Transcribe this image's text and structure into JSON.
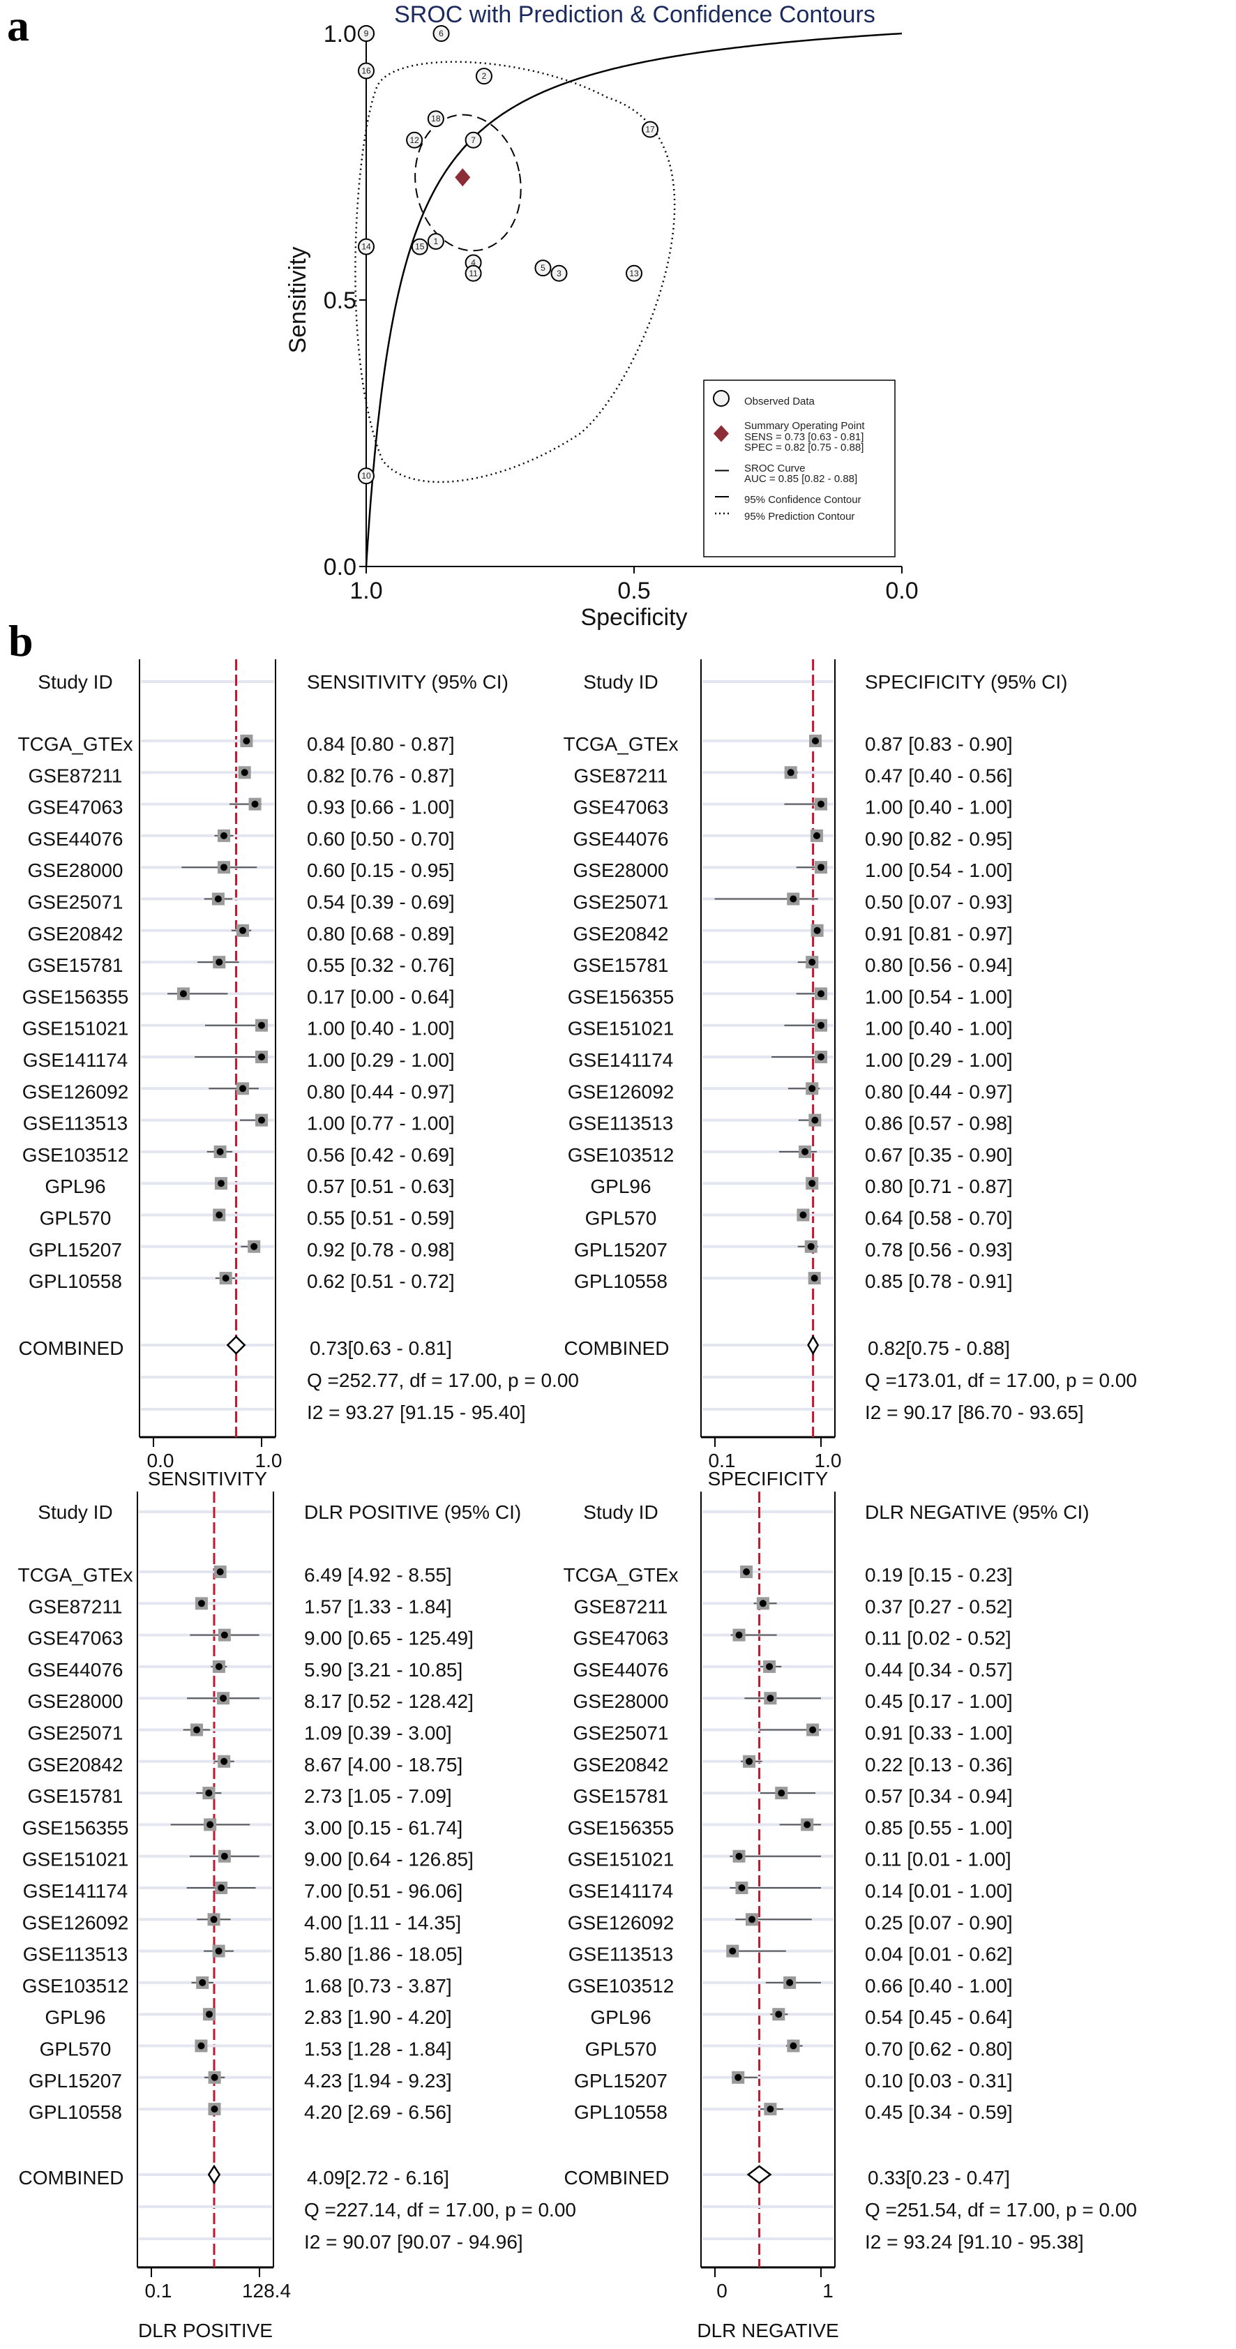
{
  "panel_labels": {
    "a": "a",
    "b": "b"
  },
  "chart_data": [
    {
      "id": "sroc",
      "type": "scatter",
      "title": "SROC with Prediction & Confidence Contours",
      "xlabel": "Specificity",
      "ylabel": "Sensitivity",
      "xlim": [
        1.0,
        0.0
      ],
      "ylim": [
        0.0,
        1.0
      ],
      "xticks": [
        "1.0",
        "0.5",
        "0.0"
      ],
      "yticks": [
        "0.0",
        "0.5",
        "1.0"
      ],
      "xtick_values": [
        1.0,
        0.5,
        0.0
      ],
      "ytick_values": [
        0.0,
        0.5,
        1.0
      ],
      "grid": false,
      "points": [
        {
          "label": "1",
          "spec": 0.87,
          "sens": 0.61
        },
        {
          "label": "2",
          "spec": 0.78,
          "sens": 0.92
        },
        {
          "label": "3",
          "spec": 0.64,
          "sens": 0.55
        },
        {
          "label": "4",
          "spec": 0.8,
          "sens": 0.57
        },
        {
          "label": "5",
          "spec": 0.67,
          "sens": 0.56
        },
        {
          "label": "6",
          "spec": 0.86,
          "sens": 1.0
        },
        {
          "label": "7",
          "spec": 0.8,
          "sens": 0.8
        },
        {
          "label": "8",
          "spec": 1.0,
          "sens": 1.0
        },
        {
          "label": "9",
          "spec": 1.0,
          "sens": 1.0
        },
        {
          "label": "10",
          "spec": 1.0,
          "sens": 0.17
        },
        {
          "label": "11",
          "spec": 0.8,
          "sens": 0.55
        },
        {
          "label": "12",
          "spec": 0.91,
          "sens": 0.8
        },
        {
          "label": "13",
          "spec": 0.5,
          "sens": 0.55
        },
        {
          "label": "14",
          "spec": 1.0,
          "sens": 0.6
        },
        {
          "label": "15",
          "spec": 0.9,
          "sens": 0.6
        },
        {
          "label": "16",
          "spec": 1.0,
          "sens": 0.93
        },
        {
          "label": "17",
          "spec": 0.47,
          "sens": 0.82
        },
        {
          "label": "18",
          "spec": 0.87,
          "sens": 0.84
        }
      ],
      "summary_point": {
        "spec": 0.82,
        "sens": 0.73
      },
      "summary_color": "#8b2c36",
      "auc": 0.85,
      "legend": {
        "placement": "bottom-right",
        "entries": [
          {
            "symbol": "circle",
            "lines": [
              "Observed Data"
            ]
          },
          {
            "symbol": "diamond",
            "lines": [
              "Summary Operating Point",
              "SENS = 0.73 [0.63 - 0.81]",
              "SPEC = 0.82 [0.75 - 0.88]"
            ]
          },
          {
            "symbol": "solid",
            "lines": [
              "SROC Curve",
              "AUC = 0.85 [0.82 - 0.88]"
            ]
          },
          {
            "symbol": "solid",
            "lines": [
              "95% Confidence Contour"
            ]
          },
          {
            "symbol": "dotted",
            "lines": [
              "95% Prediction Contour"
            ]
          }
        ]
      }
    },
    {
      "id": "forest-sensitivity",
      "type": "forest",
      "study_header": "Study ID",
      "value_header": "SENSITIVITY (95% CI)",
      "xlabel": "SENSITIVITY",
      "scale": "linear",
      "xlim": [
        0.0,
        1.0
      ],
      "xticks": [
        "0.0",
        "1.0"
      ],
      "pooled_line": 0.73,
      "studies": [
        {
          "id": "TCGA_GTEx",
          "est": 0.84,
          "lo": 0.8,
          "hi": 0.87,
          "text": "0.84 [0.80 - 0.87]"
        },
        {
          "id": "GSE87211",
          "est": 0.82,
          "lo": 0.76,
          "hi": 0.87,
          "text": "0.82 [0.76 - 0.87]"
        },
        {
          "id": "GSE47063",
          "est": 0.93,
          "lo": 0.66,
          "hi": 1.0,
          "text": "0.93 [0.66 - 1.00]"
        },
        {
          "id": "GSE44076",
          "est": 0.6,
          "lo": 0.5,
          "hi": 0.7,
          "text": "0.60 [0.50 - 0.70]"
        },
        {
          "id": "GSE28000",
          "est": 0.6,
          "lo": 0.15,
          "hi": 0.95,
          "text": "0.60 [0.15 - 0.95]"
        },
        {
          "id": "GSE25071",
          "est": 0.54,
          "lo": 0.39,
          "hi": 0.69,
          "text": "0.54 [0.39 - 0.69]"
        },
        {
          "id": "GSE20842",
          "est": 0.8,
          "lo": 0.68,
          "hi": 0.89,
          "text": "0.80 [0.68 - 0.89]"
        },
        {
          "id": "GSE15781",
          "est": 0.55,
          "lo": 0.32,
          "hi": 0.76,
          "text": "0.55 [0.32 - 0.76]"
        },
        {
          "id": "GSE156355",
          "est": 0.17,
          "lo": 0.0,
          "hi": 0.64,
          "text": "0.17 [0.00 - 0.64]"
        },
        {
          "id": "GSE151021",
          "est": 1.0,
          "lo": 0.4,
          "hi": 1.0,
          "text": "1.00 [0.40 - 1.00]"
        },
        {
          "id": "GSE141174",
          "est": 1.0,
          "lo": 0.29,
          "hi": 1.0,
          "text": "1.00 [0.29 - 1.00]"
        },
        {
          "id": "GSE126092",
          "est": 0.8,
          "lo": 0.44,
          "hi": 0.97,
          "text": "0.80 [0.44 - 0.97]"
        },
        {
          "id": "GSE113513",
          "est": 1.0,
          "lo": 0.77,
          "hi": 1.0,
          "text": "1.00 [0.77 - 1.00]"
        },
        {
          "id": "GSE103512",
          "est": 0.56,
          "lo": 0.42,
          "hi": 0.69,
          "text": "0.56 [0.42 - 0.69]"
        },
        {
          "id": "GPL96",
          "est": 0.57,
          "lo": 0.51,
          "hi": 0.63,
          "text": "0.57 [0.51 - 0.63]"
        },
        {
          "id": "GPL570",
          "est": 0.55,
          "lo": 0.51,
          "hi": 0.59,
          "text": "0.55 [0.51 - 0.59]"
        },
        {
          "id": "GPL15207",
          "est": 0.92,
          "lo": 0.78,
          "hi": 0.98,
          "text": "0.92 [0.78 - 0.98]"
        },
        {
          "id": "GPL10558",
          "est": 0.62,
          "lo": 0.51,
          "hi": 0.72,
          "text": "0.62 [0.51 - 0.72]"
        }
      ],
      "combined": {
        "label": "COMBINED",
        "est": 0.73,
        "lo": 0.63,
        "hi": 0.81,
        "text": "0.73[0.63 - 0.81]"
      },
      "q_text": "Q =252.77, df = 17.00, p =  0.00",
      "i2_text": "I2 = 93.27 [91.15 - 95.40]"
    },
    {
      "id": "forest-specificity",
      "type": "forest",
      "study_header": "Study ID",
      "value_header": "SPECIFICITY (95% CI)",
      "xlabel": "SPECIFICITY",
      "scale": "log",
      "xlim": [
        0.1,
        1.0
      ],
      "xticks": [
        "0.1",
        "1.0"
      ],
      "pooled_line": 0.82,
      "studies": [
        {
          "id": "TCGA_GTEx",
          "est": 0.87,
          "lo": 0.83,
          "hi": 0.9,
          "text": "0.87 [0.83 - 0.90]"
        },
        {
          "id": "GSE87211",
          "est": 0.47,
          "lo": 0.4,
          "hi": 0.56,
          "text": "0.47 [0.40 - 0.56]"
        },
        {
          "id": "GSE47063",
          "est": 1.0,
          "lo": 0.4,
          "hi": 1.0,
          "text": "1.00 [0.40 - 1.00]"
        },
        {
          "id": "GSE44076",
          "est": 0.9,
          "lo": 0.82,
          "hi": 0.95,
          "text": "0.90 [0.82 - 0.95]"
        },
        {
          "id": "GSE28000",
          "est": 1.0,
          "lo": 0.54,
          "hi": 1.0,
          "text": "1.00 [0.54 - 1.00]"
        },
        {
          "id": "GSE25071",
          "est": 0.5,
          "lo": 0.07,
          "hi": 0.93,
          "text": "0.50 [0.07 - 0.93]"
        },
        {
          "id": "GSE20842",
          "est": 0.91,
          "lo": 0.81,
          "hi": 0.97,
          "text": "0.91 [0.81 - 0.97]"
        },
        {
          "id": "GSE15781",
          "est": 0.8,
          "lo": 0.56,
          "hi": 0.94,
          "text": "0.80 [0.56 - 0.94]"
        },
        {
          "id": "GSE156355",
          "est": 1.0,
          "lo": 0.54,
          "hi": 1.0,
          "text": "1.00 [0.54 - 1.00]"
        },
        {
          "id": "GSE151021",
          "est": 1.0,
          "lo": 0.4,
          "hi": 1.0,
          "text": "1.00 [0.40 - 1.00]"
        },
        {
          "id": "GSE141174",
          "est": 1.0,
          "lo": 0.29,
          "hi": 1.0,
          "text": "1.00 [0.29 - 1.00]"
        },
        {
          "id": "GSE126092",
          "est": 0.8,
          "lo": 0.44,
          "hi": 0.97,
          "text": "0.80 [0.44 - 0.97]"
        },
        {
          "id": "GSE113513",
          "est": 0.86,
          "lo": 0.57,
          "hi": 0.98,
          "text": "0.86 [0.57 - 0.98]"
        },
        {
          "id": "GSE103512",
          "est": 0.67,
          "lo": 0.35,
          "hi": 0.9,
          "text": "0.67 [0.35 - 0.90]"
        },
        {
          "id": "GPL96",
          "est": 0.8,
          "lo": 0.71,
          "hi": 0.87,
          "text": "0.80 [0.71 - 0.87]"
        },
        {
          "id": "GPL570",
          "est": 0.64,
          "lo": 0.58,
          "hi": 0.7,
          "text": "0.64 [0.58 - 0.70]"
        },
        {
          "id": "GPL15207",
          "est": 0.78,
          "lo": 0.56,
          "hi": 0.93,
          "text": "0.78 [0.56 - 0.93]"
        },
        {
          "id": "GPL10558",
          "est": 0.85,
          "lo": 0.78,
          "hi": 0.91,
          "text": "0.85 [0.78 - 0.91]"
        }
      ],
      "combined": {
        "label": "COMBINED",
        "est": 0.82,
        "lo": 0.75,
        "hi": 0.88,
        "text": "0.82[0.75 - 0.88]"
      },
      "q_text": "Q =173.01, df = 17.00, p =  0.00",
      "i2_text": "I2 = 90.17 [86.70 - 93.65]"
    },
    {
      "id": "forest-dlr-positive",
      "type": "forest",
      "study_header": "Study ID",
      "value_header": "DLR POSITIVE (95% CI)",
      "xlabel": "DLR POSITIVE",
      "scale": "log",
      "xlim": [
        0.1,
        128.4
      ],
      "xticks": [
        "0.1",
        "128.4"
      ],
      "pooled_line": 4.09,
      "studies": [
        {
          "id": "TCGA_GTEx",
          "est": 6.49,
          "lo": 4.92,
          "hi": 8.55,
          "text": "6.49 [4.92 - 8.55]"
        },
        {
          "id": "GSE87211",
          "est": 1.57,
          "lo": 1.33,
          "hi": 1.84,
          "text": "1.57 [1.33 - 1.84]"
        },
        {
          "id": "GSE47063",
          "est": 9.0,
          "lo": 0.65,
          "hi": 125.49,
          "text": "9.00 [0.65 - 125.49]"
        },
        {
          "id": "GSE44076",
          "est": 5.9,
          "lo": 3.21,
          "hi": 10.85,
          "text": "5.90 [3.21 - 10.85]"
        },
        {
          "id": "GSE28000",
          "est": 8.17,
          "lo": 0.52,
          "hi": 128.42,
          "text": "8.17 [0.52 - 128.42]"
        },
        {
          "id": "GSE25071",
          "est": 1.09,
          "lo": 0.39,
          "hi": 3.0,
          "text": "1.09 [0.39 - 3.00]"
        },
        {
          "id": "GSE20842",
          "est": 8.67,
          "lo": 4.0,
          "hi": 18.75,
          "text": "8.67 [4.00 - 18.75]"
        },
        {
          "id": "GSE15781",
          "est": 2.73,
          "lo": 1.05,
          "hi": 7.09,
          "text": "2.73 [1.05 - 7.09]"
        },
        {
          "id": "GSE156355",
          "est": 3.0,
          "lo": 0.15,
          "hi": 61.74,
          "text": "3.00 [0.15 - 61.74]"
        },
        {
          "id": "GSE151021",
          "est": 9.0,
          "lo": 0.64,
          "hi": 126.85,
          "text": "9.00 [0.64 - 126.85]"
        },
        {
          "id": "GSE141174",
          "est": 7.0,
          "lo": 0.51,
          "hi": 96.06,
          "text": "7.00 [0.51 - 96.06]"
        },
        {
          "id": "GSE126092",
          "est": 4.0,
          "lo": 1.11,
          "hi": 14.35,
          "text": "4.00 [1.11 - 14.35]"
        },
        {
          "id": "GSE113513",
          "est": 5.8,
          "lo": 1.86,
          "hi": 18.05,
          "text": "5.80 [1.86 - 18.05]"
        },
        {
          "id": "GSE103512",
          "est": 1.68,
          "lo": 0.73,
          "hi": 3.87,
          "text": "1.68 [0.73 - 3.87]"
        },
        {
          "id": "GPL96",
          "est": 2.83,
          "lo": 1.9,
          "hi": 4.2,
          "text": "2.83 [1.90 - 4.20]"
        },
        {
          "id": "GPL570",
          "est": 1.53,
          "lo": 1.28,
          "hi": 1.84,
          "text": "1.53 [1.28 - 1.84]"
        },
        {
          "id": "GPL15207",
          "est": 4.23,
          "lo": 1.94,
          "hi": 9.23,
          "text": "4.23 [1.94 - 9.23]"
        },
        {
          "id": "GPL10558",
          "est": 4.2,
          "lo": 2.69,
          "hi": 6.56,
          "text": "4.20 [2.69 - 6.56]"
        }
      ],
      "combined": {
        "label": "COMBINED",
        "est": 4.09,
        "lo": 2.72,
        "hi": 6.16,
        "text": "4.09[2.72 - 6.16]"
      },
      "q_text": "Q =227.14, df = 17.00, p =  0.00",
      "i2_text": "I2 = 90.07 [90.07 - 94.96]"
    },
    {
      "id": "forest-dlr-negative",
      "type": "forest",
      "study_header": "Study ID",
      "value_header": "DLR NEGATIVE (95% CI)",
      "xlabel": "DLR NEGATIVE",
      "scale": "linear",
      "xlim": [
        0,
        1
      ],
      "xticks": [
        "0",
        "1"
      ],
      "pooled_line": 0.33,
      "studies": [
        {
          "id": "TCGA_GTEx",
          "est": 0.19,
          "lo": 0.15,
          "hi": 0.23,
          "text": "0.19 [0.15 - 0.23]"
        },
        {
          "id": "GSE87211",
          "est": 0.37,
          "lo": 0.27,
          "hi": 0.52,
          "text": "0.37 [0.27 - 0.52]"
        },
        {
          "id": "GSE47063",
          "est": 0.11,
          "lo": 0.02,
          "hi": 0.52,
          "text": "0.11 [0.02 - 0.52]"
        },
        {
          "id": "GSE44076",
          "est": 0.44,
          "lo": 0.34,
          "hi": 0.57,
          "text": "0.44 [0.34 - 0.57]"
        },
        {
          "id": "GSE28000",
          "est": 0.45,
          "lo": 0.17,
          "hi": 1.0,
          "text": "0.45 [0.17 - 1.00]"
        },
        {
          "id": "GSE25071",
          "est": 0.91,
          "lo": 0.33,
          "hi": 1.0,
          "text": "0.91 [0.33 - 1.00]"
        },
        {
          "id": "GSE20842",
          "est": 0.22,
          "lo": 0.13,
          "hi": 0.36,
          "text": "0.22 [0.13 - 0.36]"
        },
        {
          "id": "GSE15781",
          "est": 0.57,
          "lo": 0.34,
          "hi": 0.94,
          "text": "0.57 [0.34 - 0.94]"
        },
        {
          "id": "GSE156355",
          "est": 0.85,
          "lo": 0.55,
          "hi": 1.0,
          "text": "0.85 [0.55 - 1.00]"
        },
        {
          "id": "GSE151021",
          "est": 0.11,
          "lo": 0.01,
          "hi": 1.0,
          "text": "0.11 [0.01 - 1.00]"
        },
        {
          "id": "GSE141174",
          "est": 0.14,
          "lo": 0.01,
          "hi": 1.0,
          "text": "0.14 [0.01 - 1.00]"
        },
        {
          "id": "GSE126092",
          "est": 0.25,
          "lo": 0.07,
          "hi": 0.9,
          "text": "0.25 [0.07 - 0.90]"
        },
        {
          "id": "GSE113513",
          "est": 0.04,
          "lo": 0.01,
          "hi": 0.62,
          "text": "0.04 [0.01 - 0.62]"
        },
        {
          "id": "GSE103512",
          "est": 0.66,
          "lo": 0.4,
          "hi": 1.0,
          "text": "0.66 [0.40 - 1.00]"
        },
        {
          "id": "GPL96",
          "est": 0.54,
          "lo": 0.45,
          "hi": 0.64,
          "text": "0.54 [0.45 - 0.64]"
        },
        {
          "id": "GPL570",
          "est": 0.7,
          "lo": 0.62,
          "hi": 0.8,
          "text": "0.70 [0.62 - 0.80]"
        },
        {
          "id": "GPL15207",
          "est": 0.1,
          "lo": 0.03,
          "hi": 0.31,
          "text": "0.10 [0.03 - 0.31]"
        },
        {
          "id": "GPL10558",
          "est": 0.45,
          "lo": 0.34,
          "hi": 0.59,
          "text": "0.45 [0.34 - 0.59]"
        }
      ],
      "combined": {
        "label": "COMBINED",
        "est": 0.33,
        "lo": 0.23,
        "hi": 0.47,
        "text": "0.33[0.23 - 0.47]"
      },
      "q_text": "Q =251.54, df = 17.00, p =  0.00",
      "i2_text": "I2 = 93.24 [91.10 - 95.38]"
    }
  ],
  "colors": {
    "pooled_line": "#c0182e",
    "summary_point": "#8b2c36",
    "title": "#1b2a5c",
    "row_band": "#e3e6f0",
    "marker_box": "#9a9a9a"
  }
}
